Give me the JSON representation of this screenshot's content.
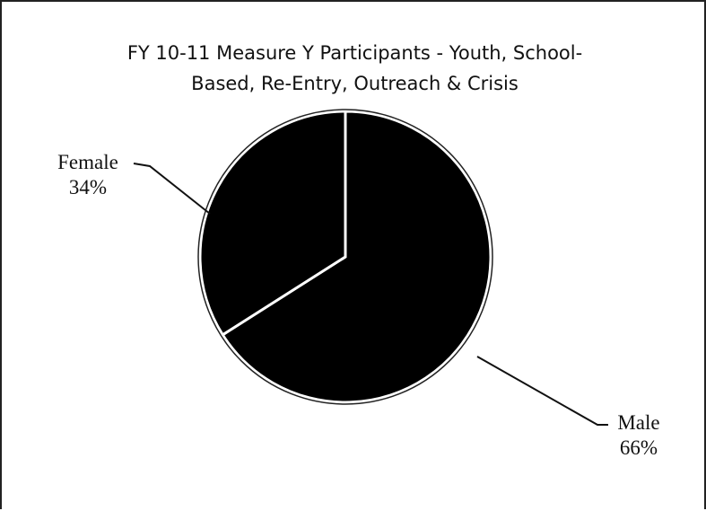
{
  "chart_data": {
    "type": "pie",
    "title_lines": [
      "FY 10-11 Measure Y Participants - Youth, School-",
      "Based, Re-Entry, Outreach & Crisis"
    ],
    "slices": [
      {
        "label": "Male",
        "value": 66,
        "value_label": "66%",
        "color": "#000000"
      },
      {
        "label": "Female",
        "value": 34,
        "value_label": "34%",
        "color": "#000000"
      }
    ],
    "legend": "none"
  }
}
